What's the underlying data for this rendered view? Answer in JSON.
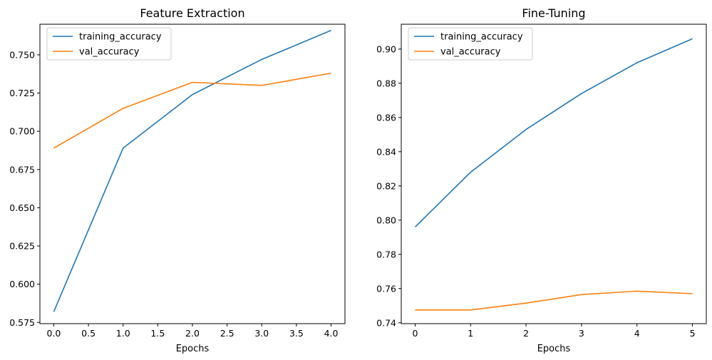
{
  "colors": {
    "training_accuracy": "#1f77b4",
    "val_accuracy": "#ff7f0e"
  },
  "chart_data": [
    {
      "type": "line",
      "title": "Feature Extraction",
      "xlabel": "Epochs",
      "ylabel": "",
      "x": [
        0,
        1,
        2,
        3,
        4
      ],
      "xlim": [
        -0.2,
        4.2
      ],
      "ylim": [
        0.5742,
        0.77
      ],
      "xticks": [
        0.0,
        0.5,
        1.0,
        1.5,
        2.0,
        2.5,
        3.0,
        3.5,
        4.0
      ],
      "xtick_labels": [
        "0.0",
        "0.5",
        "1.0",
        "1.5",
        "2.0",
        "2.5",
        "3.0",
        "3.5",
        "4.0"
      ],
      "yticks": [
        0.575,
        0.6,
        0.625,
        0.65,
        0.675,
        0.7,
        0.725,
        0.75
      ],
      "ytick_labels": [
        "0.575",
        "0.600",
        "0.625",
        "0.650",
        "0.675",
        "0.700",
        "0.725",
        "0.750"
      ],
      "grid": false,
      "legend": "top-left",
      "series": [
        {
          "name": "training_accuracy",
          "color": "#1f77b4",
          "values": [
            0.582,
            0.689,
            0.724,
            0.747,
            0.766
          ]
        },
        {
          "name": "val_accuracy",
          "color": "#ff7f0e",
          "values": [
            0.689,
            0.715,
            0.732,
            0.73,
            0.738
          ]
        }
      ]
    },
    {
      "type": "line",
      "title": "Fine-Tuning",
      "xlabel": "Epochs",
      "ylabel": "",
      "x": [
        0,
        1,
        2,
        3,
        4,
        5
      ],
      "xlim": [
        -0.25,
        5.25
      ],
      "ylim": [
        0.7395,
        0.9145
      ],
      "xticks": [
        0,
        1,
        2,
        3,
        4,
        5
      ],
      "xtick_labels": [
        "0",
        "1",
        "2",
        "3",
        "4",
        "5"
      ],
      "yticks": [
        0.74,
        0.76,
        0.78,
        0.8,
        0.82,
        0.84,
        0.86,
        0.88,
        0.9
      ],
      "ytick_labels": [
        "0.74",
        "0.76",
        "0.78",
        "0.80",
        "0.82",
        "0.84",
        "0.86",
        "0.88",
        "0.90"
      ],
      "grid": false,
      "legend": "top-left",
      "series": [
        {
          "name": "training_accuracy",
          "color": "#1f77b4",
          "values": [
            0.796,
            0.828,
            0.853,
            0.874,
            0.892,
            0.906
          ]
        },
        {
          "name": "val_accuracy",
          "color": "#ff7f0e",
          "values": [
            0.7475,
            0.7475,
            0.7515,
            0.7565,
            0.7585,
            0.757
          ]
        }
      ]
    }
  ]
}
